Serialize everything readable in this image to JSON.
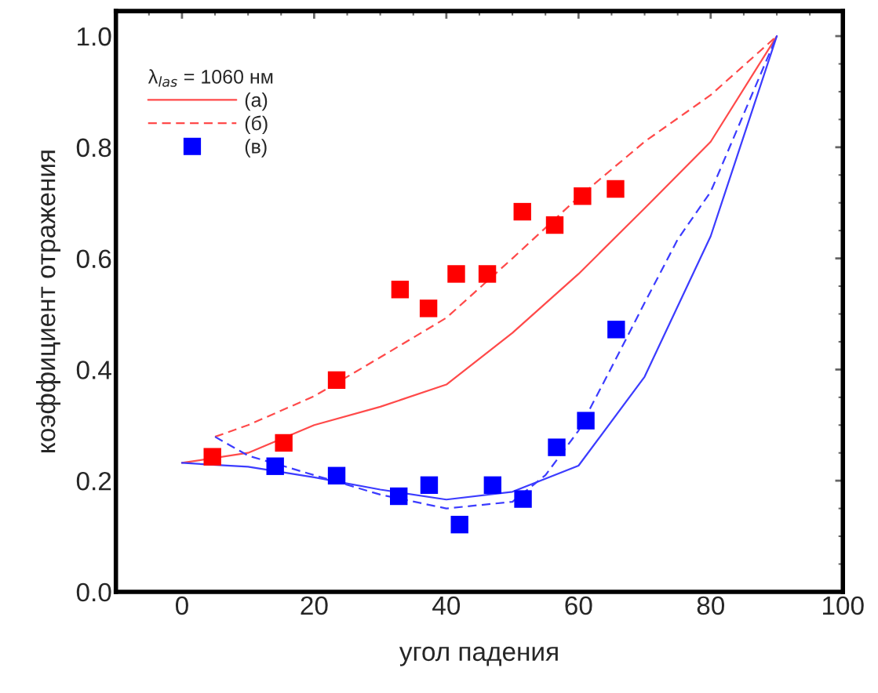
{
  "chart_data": {
    "type": "line",
    "xlabel": "угол падения",
    "ylabel": "коэффициент отражения",
    "legend_title": "λ$_{las}$ = 1060 нм",
    "legend": "top left",
    "grid": false,
    "xlim": [
      -10,
      100
    ],
    "xticks": [
      0,
      20,
      40,
      60,
      80,
      100
    ],
    "ylim": [
      0,
      1.045
    ],
    "yticks": [
      {
        "value": 0,
        "label": "0.0"
      },
      0.2,
      0.4,
      0.6,
      0.8,
      {
        "value": 1,
        "label": "1.0"
      }
    ],
    "series": [
      {
        "name": "(а)",
        "line_style": "solid",
        "color": "#ff4a4a",
        "x": [
          0,
          10,
          20,
          30,
          40,
          50,
          60,
          70,
          80,
          90
        ],
        "values": [
          0.232,
          0.25,
          0.3,
          0.333,
          0.373,
          0.466,
          0.572,
          0.69,
          0.81,
          1.0
        ]
      },
      {
        "name": "(б)",
        "line_style": "dashed",
        "color": "#ff4a4a",
        "x": [
          5,
          10,
          20,
          30,
          40,
          50,
          60,
          70,
          80,
          90
        ],
        "values": [
          0.279,
          0.3,
          0.352,
          0.422,
          0.493,
          0.6,
          0.71,
          0.81,
          0.894,
          1.0
        ]
      },
      {
        "name": "(в)",
        "type": "scatter",
        "marker": "square",
        "color": "#0000ff",
        "x": [
          14.1,
          23.4,
          32.8,
          37.4,
          42,
          47,
          51.6,
          56.7,
          61.1,
          65.7
        ],
        "values": [
          0.226,
          0.209,
          0.172,
          0.192,
          0.121,
          0.192,
          0.167,
          0.26,
          0.308,
          0.472
        ]
      },
      {
        "line_style": "solid",
        "color": "#3c3cff",
        "x": [
          0,
          10,
          20,
          30,
          40,
          50,
          60,
          70,
          80,
          90
        ],
        "values": [
          0.232,
          0.225,
          0.206,
          0.184,
          0.166,
          0.18,
          0.227,
          0.387,
          0.64,
          1.0
        ]
      },
      {
        "line_style": "dashed",
        "color": "#3c3cff",
        "x": [
          5,
          10,
          20,
          30,
          40,
          50,
          55,
          60,
          65,
          70,
          75,
          80,
          85,
          90
        ],
        "values": [
          0.279,
          0.245,
          0.21,
          0.175,
          0.15,
          0.162,
          0.21,
          0.29,
          0.404,
          0.52,
          0.634,
          0.72,
          0.86,
          1.0
        ]
      },
      {
        "type": "scatter",
        "marker": "square",
        "color": "#ff0000",
        "x": [
          4.6,
          15.4,
          23.4,
          33,
          37.3,
          41.5,
          46.2,
          51.5,
          56.4,
          60.6,
          65.6
        ],
        "values": [
          0.243,
          0.268,
          0.381,
          0.544,
          0.51,
          0.572,
          0.572,
          0.684,
          0.66,
          0.712,
          0.725
        ]
      }
    ]
  }
}
